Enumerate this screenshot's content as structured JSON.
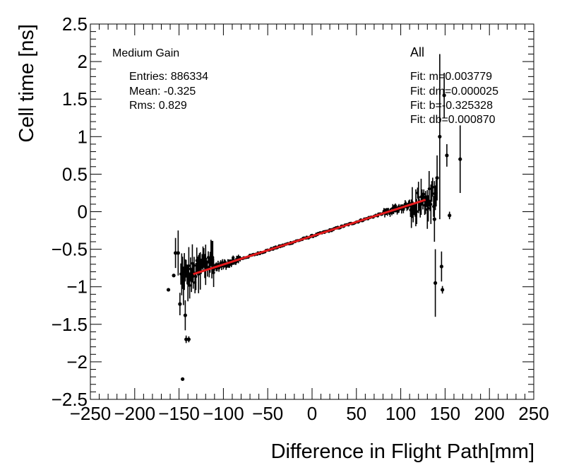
{
  "chart_data": {
    "type": "scatter",
    "title": "",
    "xlabel": "Difference in Flight Path[mm]",
    "ylabel": "Cell time [ns]",
    "xlim": [
      -250,
      250
    ],
    "ylim": [
      -2.5,
      2.5
    ],
    "xticks": [
      -250,
      -200,
      -150,
      -100,
      -50,
      0,
      50,
      100,
      150,
      200,
      250
    ],
    "xtick_labels": [
      "−250",
      "−200",
      "−150",
      "−100",
      "−50",
      "0",
      "50",
      "100",
      "150",
      "200",
      "250"
    ],
    "yticks": [
      -2.5,
      -2,
      -1.5,
      -1,
      -0.5,
      0,
      0.5,
      1,
      1.5,
      2,
      2.5
    ],
    "ytick_labels": [
      "−2.5",
      "−2",
      "−1.5",
      "−1",
      "−0.5",
      "0",
      "0.5",
      "1",
      "1.5",
      "2",
      "2.5"
    ],
    "stats": {
      "title": "Medium Gain",
      "entries": "Entries: 886334",
      "mean": "Mean: -0.325",
      "rms": "Rms: 0.829"
    },
    "fit_box": {
      "title": "All",
      "lines": [
        "Fit: m=0.003779",
        "Fit: dm=0.000025",
        "Fit: b=-0.325328",
        "Fit: db=0.000870"
      ]
    },
    "fit": {
      "m": 0.003779,
      "b": -0.325328,
      "x_range": [
        -134,
        128
      ],
      "color": "#e41a1c"
    },
    "outliers": [
      {
        "x": -162,
        "y": -1.04,
        "err": 0
      },
      {
        "x": -156,
        "y": -0.85,
        "err": 0
      },
      {
        "x": -154,
        "y": -0.55,
        "err": 0.2
      },
      {
        "x": -151,
        "y": -0.55,
        "err": 0.3
      },
      {
        "x": -149,
        "y": -1.23,
        "err": 0.15
      },
      {
        "x": -146,
        "y": -2.23,
        "err": 0
      },
      {
        "x": -143,
        "y": -1.38,
        "err": 0.2
      },
      {
        "x": -142,
        "y": -1.7,
        "err": 0.05
      },
      {
        "x": -139,
        "y": -1.7,
        "err": 0.04
      },
      {
        "x": 138,
        "y": -0.1,
        "err": 0.3
      },
      {
        "x": 139,
        "y": -0.95,
        "err": 0.45
      },
      {
        "x": 141,
        "y": 0.45,
        "err": 0.3
      },
      {
        "x": 144,
        "y": 1.0,
        "err": 1.1
      },
      {
        "x": 146,
        "y": -0.73,
        "err": 0.2
      },
      {
        "x": 147,
        "y": -1.04,
        "err": 0.05
      },
      {
        "x": 149,
        "y": 1.55,
        "err": 0.3
      },
      {
        "x": 152,
        "y": 0.75,
        "err": 0.15
      },
      {
        "x": 155,
        "y": -0.05,
        "err": 0.05
      },
      {
        "x": 167,
        "y": 0.7,
        "err": 0.45
      }
    ],
    "color": "#000000"
  }
}
